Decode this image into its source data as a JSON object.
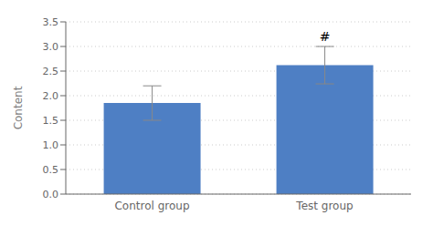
{
  "chart_data": {
    "type": "bar",
    "categories": [
      "Control group",
      "Test group"
    ],
    "values": [
      1.85,
      2.62
    ],
    "errors": [
      0.35,
      0.38
    ],
    "color": "#4e7fc4",
    "ylabel": "Content",
    "ylim": [
      0,
      3.5
    ],
    "yticks": [
      {
        "value": 0,
        "label": "0.0"
      },
      {
        "value": 0.5,
        "label": "0.5"
      },
      {
        "value": 1.0,
        "label": "1.0"
      },
      {
        "value": 1.5,
        "label": "1.5"
      },
      {
        "value": 2.0,
        "label": "2.0"
      },
      {
        "value": 2.5,
        "label": "2.5"
      },
      {
        "value": 3.0,
        "label": "3.0"
      },
      {
        "value": 3.5,
        "label": "3.5"
      }
    ],
    "grid": true,
    "annotations": [
      {
        "text": "#",
        "category": "Test group"
      }
    ]
  }
}
